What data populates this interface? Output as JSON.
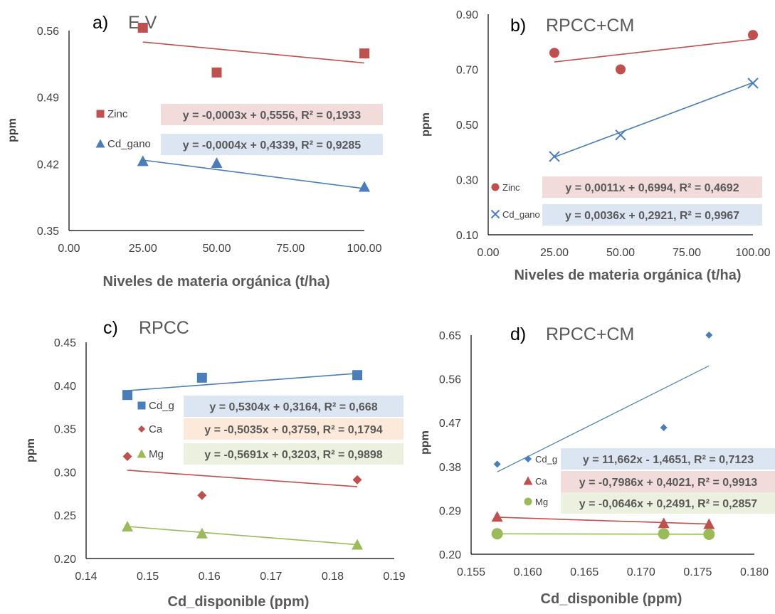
{
  "chart_data": [
    {
      "panel": "a)",
      "title": "E.V",
      "type": "scatter",
      "xlabel": "Niveles de materia orgánica (t/ha)",
      "ylabel": "ppm",
      "xlim": [
        0,
        100
      ],
      "ylim": [
        0.35,
        0.56
      ],
      "xticks": [
        "0.00",
        "25.00",
        "50.00",
        "75.00",
        "100.00"
      ],
      "yticks": [
        "0.35",
        "0.42",
        "0.49",
        "0.56"
      ],
      "series": [
        {
          "name": "Zinc",
          "color": "#C0504D",
          "marker": "square",
          "x": [
            25,
            50,
            100
          ],
          "y": [
            0.563,
            0.516,
            0.536
          ],
          "trendline": [
            [
              25,
              0.548
            ],
            [
              100,
              0.526
            ]
          ],
          "equation": "y = -0,0003x + 0,5556, R² = 0,1933",
          "eq_bg": "#F2DCDB"
        },
        {
          "name": "Cd_gano",
          "color": "#4A7EBB",
          "marker": "triangle",
          "x": [
            25,
            50,
            100
          ],
          "y": [
            0.423,
            0.421,
            0.396
          ],
          "trendline": [
            [
              25,
              0.424
            ],
            [
              100,
              0.394
            ]
          ],
          "equation": "y = -0,0004x + 0,4339, R² = 0,9285",
          "eq_bg": "#DCE6F2"
        }
      ]
    },
    {
      "panel": "b)",
      "title": "RPCC+CM",
      "type": "scatter",
      "xlabel": "Niveles de materia orgánica (t/ha)",
      "ylabel": "ppm",
      "xlim": [
        0,
        100
      ],
      "ylim": [
        0.1,
        0.9
      ],
      "xticks": [
        "0.00",
        "25.00",
        "50.00",
        "75.00",
        "100.00"
      ],
      "yticks": [
        "0.10",
        "0.30",
        "0.50",
        "0.70",
        "0.90"
      ],
      "series": [
        {
          "name": "Zinc",
          "color": "#C0504D",
          "marker": "circle",
          "x": [
            25,
            50,
            100
          ],
          "y": [
            0.76,
            0.7,
            0.825
          ],
          "trendline": [
            [
              25,
              0.727
            ],
            [
              100,
              0.809
            ]
          ],
          "equation": "y = 0,0011x + 0,6994, R² = 0,4692",
          "eq_bg": "#F2DCDB"
        },
        {
          "name": "Cd_gano",
          "color": "#4A7EBB",
          "marker": "x",
          "x": [
            25,
            50,
            100
          ],
          "y": [
            0.384,
            0.462,
            0.65
          ],
          "trendline": [
            [
              25,
              0.382
            ],
            [
              100,
              0.652
            ]
          ],
          "equation": "y = 0,0036x + 0,2921, R² = 0,9967",
          "eq_bg": "#DCE6F2"
        }
      ]
    },
    {
      "panel": "c)",
      "title": "RPCC",
      "type": "scatter",
      "xlabel": "Cd_disponible (ppm)",
      "ylabel": "ppm",
      "xlim": [
        0.14,
        0.19
      ],
      "ylim": [
        0.2,
        0.45
      ],
      "xticks": [
        "0.14",
        "0.15",
        "0.16",
        "0.17",
        "0.18",
        "0.19"
      ],
      "yticks": [
        "0.20",
        "0.25",
        "0.30",
        "0.35",
        "0.40",
        "0.45"
      ],
      "series": [
        {
          "name": "Cd_g",
          "color": "#4A7EBB",
          "marker": "square",
          "x": [
            0.1467,
            0.1588,
            0.184
          ],
          "y": [
            0.389,
            0.409,
            0.412
          ],
          "trendline": [
            [
              0.1467,
              0.394
            ],
            [
              0.184,
              0.414
            ]
          ],
          "equation": "y = 0,5304x + 0,3164, R² = 0,668",
          "eq_bg": "#DCE6F2"
        },
        {
          "name": "Ca",
          "color": "#C0504D",
          "marker": "diamond",
          "x": [
            0.1467,
            0.1588,
            0.184
          ],
          "y": [
            0.318,
            0.273,
            0.291
          ],
          "trendline": [
            [
              0.1467,
              0.302
            ],
            [
              0.184,
              0.283
            ]
          ],
          "equation": "y = -0,5035x + 0,3759, R² = 0,1794",
          "eq_bg": "#FDE9D9"
        },
        {
          "name": "Mg",
          "color": "#9BBB59",
          "marker": "triangle",
          "x": [
            0.1467,
            0.1588,
            0.184
          ],
          "y": [
            0.237,
            0.229,
            0.216
          ],
          "trendline": [
            [
              0.1467,
              0.237
            ],
            [
              0.184,
              0.216
            ]
          ],
          "equation": "y = -0,5691x + 0,3203, R² = 0,9898",
          "eq_bg": "#EBF1DE"
        }
      ]
    },
    {
      "panel": "d)",
      "title": "RPCC+CM",
      "type": "scatter",
      "xlabel": "Cd_disponible (ppm)",
      "ylabel": "ppm",
      "xlim": [
        0.155,
        0.18
      ],
      "ylim": [
        0.2,
        0.65
      ],
      "xticks": [
        "0.155",
        "0.160",
        "0.165",
        "0.170",
        "0.175",
        "0.180"
      ],
      "yticks": [
        "0.20",
        "0.29",
        "0.38",
        "0.47",
        "0.56",
        "0.65"
      ],
      "series": [
        {
          "name": "Cd_g",
          "color": "#4A7EBB",
          "marker": "diamond",
          "x": [
            0.1573,
            0.172,
            0.176
          ],
          "y": [
            0.385,
            0.46,
            0.65
          ],
          "trendline": [
            [
              0.1573,
              0.369
            ],
            [
              0.176,
              0.587
            ]
          ],
          "equation": "y = 11,662x - 1,4651, R² = 0,7123",
          "eq_bg": "#DCE6F2"
        },
        {
          "name": "Ca",
          "color": "#C0504D",
          "marker": "triangle",
          "x": [
            0.1573,
            0.172,
            0.176
          ],
          "y": [
            0.277,
            0.264,
            0.262
          ],
          "trendline": [
            [
              0.1573,
              0.276
            ],
            [
              0.176,
              0.262
            ]
          ],
          "equation": "y = -0,7986x + 0,4021, R² = 0,9913",
          "eq_bg": "#F2DCDB"
        },
        {
          "name": "Mg",
          "color": "#9BBB59",
          "marker": "circle",
          "x": [
            0.1573,
            0.172,
            0.176
          ],
          "y": [
            0.242,
            0.242,
            0.241
          ],
          "trendline": [
            [
              0.1573,
              0.242
            ],
            [
              0.176,
              0.241
            ]
          ],
          "equation": "y = -0,0646x + 0,2491, R² = 0,2857",
          "eq_bg": "#EBF1DE"
        }
      ]
    }
  ]
}
